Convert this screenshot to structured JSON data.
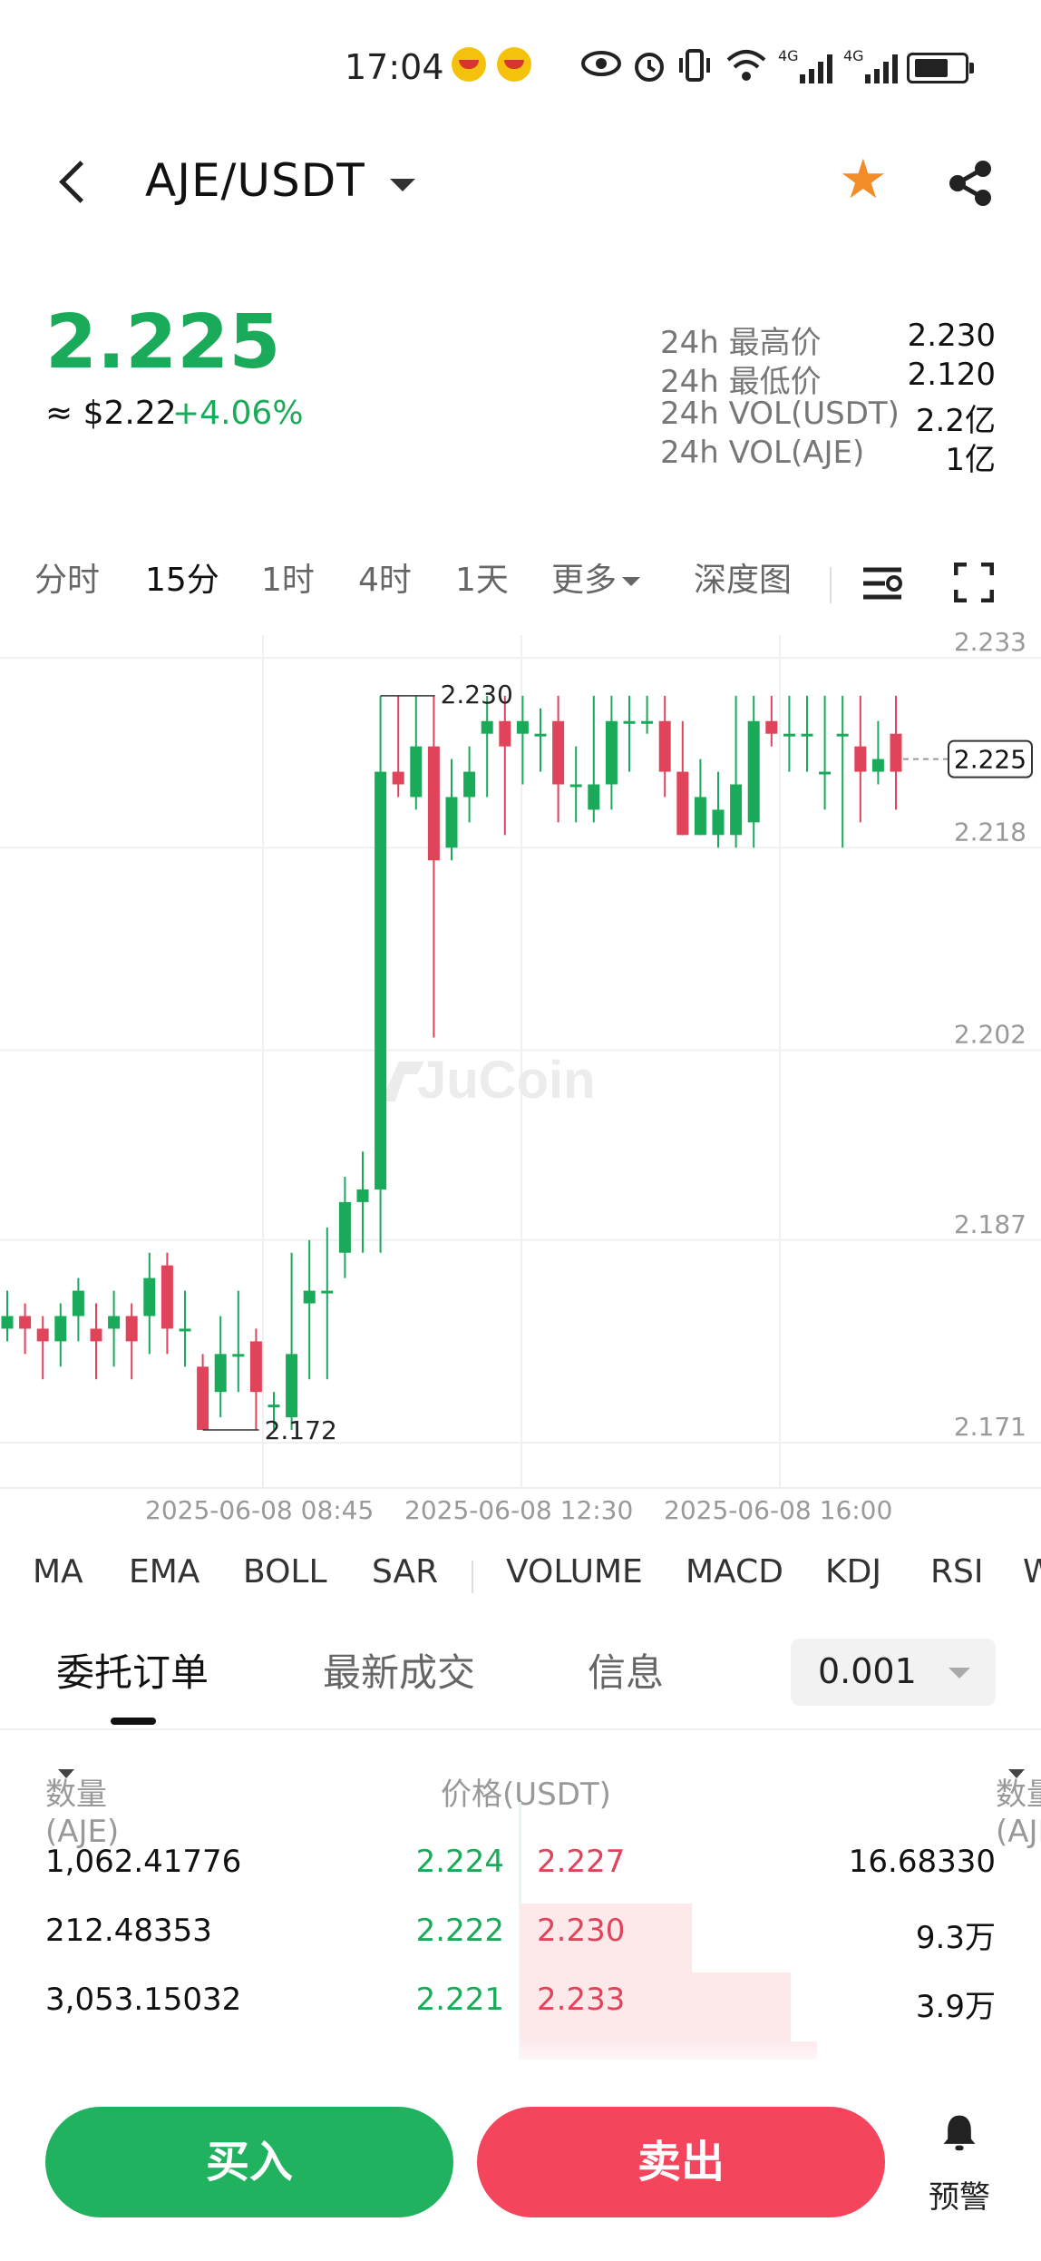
{
  "status_bar": {
    "time": "17:04",
    "signal_1": "4G",
    "signal_2": "4G"
  },
  "header": {
    "pair": "AJE/USDT"
  },
  "ticker": {
    "price": "2.225",
    "usd": "≈ $2.22",
    "change": "+4.06%",
    "stats": [
      {
        "label": "24h 最高价",
        "value": "2.230"
      },
      {
        "label": "24h 最低价",
        "value": "2.120"
      },
      {
        "label": "24h VOL(USDT)",
        "value": "2.2亿"
      },
      {
        "label": "24h VOL(AJE)",
        "value": "1亿"
      }
    ]
  },
  "timeframes": {
    "t0": "分时",
    "t1": "15分",
    "t2": "1时",
    "t3": "4时",
    "t4": "1天",
    "t5": "更多",
    "t6": "深度图"
  },
  "chart_data": {
    "type": "candlestick",
    "watermark": "JuCoin",
    "y_ticks": [
      "2.233",
      "2.218",
      "2.202",
      "2.187",
      "2.171"
    ],
    "y_range": [
      2.171,
      2.233
    ],
    "current_price_label": "2.225",
    "high_marker": "2.230",
    "low_marker": "2.172",
    "x_ticks": [
      "2025-06-08 08:45",
      "2025-06-08 12:30",
      "2025-06-08 16:00"
    ],
    "colors": {
      "up": "#1aab5a",
      "down": "#e0445b"
    },
    "candles": [
      [
        2.18,
        2.181,
        2.183,
        2.179
      ],
      [
        2.181,
        2.18,
        2.182,
        2.178
      ],
      [
        2.18,
        2.179,
        2.181,
        2.176
      ],
      [
        2.179,
        2.181,
        2.182,
        2.177
      ],
      [
        2.181,
        2.183,
        2.184,
        2.179
      ],
      [
        2.18,
        2.179,
        2.182,
        2.176
      ],
      [
        2.18,
        2.181,
        2.183,
        2.177
      ],
      [
        2.181,
        2.179,
        2.182,
        2.176
      ],
      [
        2.181,
        2.184,
        2.186,
        2.178
      ],
      [
        2.185,
        2.18,
        2.186,
        2.178
      ],
      [
        2.18,
        2.18,
        2.183,
        2.177
      ],
      [
        2.177,
        2.172,
        2.178,
        2.172
      ],
      [
        2.175,
        2.178,
        2.181,
        2.173
      ],
      [
        2.178,
        2.178,
        2.183,
        2.175
      ],
      [
        2.179,
        2.175,
        2.18,
        2.172
      ],
      [
        2.174,
        2.174,
        2.175,
        2.172
      ],
      [
        2.173,
        2.178,
        2.186,
        2.172
      ],
      [
        2.182,
        2.183,
        2.187,
        2.176
      ],
      [
        2.183,
        2.183,
        2.188,
        2.176
      ],
      [
        2.186,
        2.19,
        2.192,
        2.184
      ],
      [
        2.19,
        2.191,
        2.194,
        2.186
      ],
      [
        2.191,
        2.224,
        2.23,
        2.186
      ],
      [
        2.224,
        2.223,
        2.23,
        2.222
      ],
      [
        2.222,
        2.226,
        2.23,
        2.221
      ],
      [
        2.226,
        2.217,
        2.23,
        2.203
      ],
      [
        2.218,
        2.222,
        2.225,
        2.217
      ],
      [
        2.222,
        2.224,
        2.226,
        2.22
      ],
      [
        2.227,
        2.228,
        2.23,
        2.222
      ],
      [
        2.228,
        2.226,
        2.23,
        2.219
      ],
      [
        2.227,
        2.228,
        2.23,
        2.223
      ],
      [
        2.227,
        2.227,
        2.229,
        2.224
      ],
      [
        2.228,
        2.223,
        2.23,
        2.22
      ],
      [
        2.223,
        2.223,
        2.226,
        2.22
      ],
      [
        2.221,
        2.223,
        2.23,
        2.22
      ],
      [
        2.223,
        2.228,
        2.23,
        2.221
      ],
      [
        2.228,
        2.228,
        2.23,
        2.224
      ],
      [
        2.228,
        2.228,
        2.23,
        2.227
      ],
      [
        2.228,
        2.224,
        2.23,
        2.222
      ],
      [
        2.224,
        2.219,
        2.228,
        2.219
      ],
      [
        2.219,
        2.222,
        2.225,
        2.219
      ],
      [
        2.219,
        2.221,
        2.224,
        2.218
      ],
      [
        2.219,
        2.223,
        2.23,
        2.218
      ],
      [
        2.22,
        2.228,
        2.23,
        2.218
      ],
      [
        2.228,
        2.227,
        2.23,
        2.226
      ],
      [
        2.227,
        2.227,
        2.23,
        2.224
      ],
      [
        2.227,
        2.227,
        2.23,
        2.224
      ],
      [
        2.224,
        2.224,
        2.23,
        2.221
      ],
      [
        2.227,
        2.227,
        2.23,
        2.218
      ],
      [
        2.226,
        2.224,
        2.23,
        2.22
      ],
      [
        2.224,
        2.225,
        2.228,
        2.223
      ],
      [
        2.227,
        2.224,
        2.23,
        2.221
      ]
    ]
  },
  "indicators": [
    "MA",
    "EMA",
    "BOLL",
    "SAR",
    "VOLUME",
    "MACD",
    "KDJ",
    "RSI",
    "W"
  ],
  "order_tabs": {
    "orders": "委托订单",
    "trades": "最新成交",
    "info": "信息"
  },
  "precision": "0.001",
  "orderbook": {
    "head": {
      "bid_qty": "数量(AJE)",
      "price": "价格(USDT)",
      "ask_qty": "数量(AJE)"
    },
    "rows": [
      {
        "bid_qty": "1,062.41776",
        "bid_price": "2.224",
        "ask_price": "2.227",
        "ask_qty": "16.68330",
        "ask_depth": 0.0,
        "bid_depth": 0.0
      },
      {
        "bid_qty": "212.48353",
        "bid_price": "2.222",
        "ask_price": "2.230",
        "ask_qty": "9.3万",
        "ask_depth": 0.33,
        "bid_depth": 0.0
      },
      {
        "bid_qty": "3,053.15032",
        "bid_price": "2.221",
        "ask_price": "2.233",
        "ask_qty": "3.9万",
        "ask_depth": 0.52,
        "bid_depth": 0.0
      },
      {
        "bid_qty": "",
        "bid_price": "",
        "ask_price": "",
        "ask_qty": "",
        "ask_depth": 0.57,
        "bid_depth": 0.0
      }
    ]
  },
  "actions": {
    "buy": "买入",
    "sell": "卖出",
    "alert": "预警"
  }
}
